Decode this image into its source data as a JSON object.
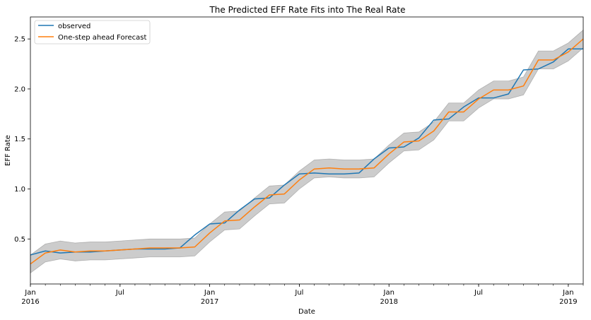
{
  "chart_data": {
    "type": "line",
    "title": "The Predicted EFF Rate Fits into The Real Rate",
    "xlabel": "Date",
    "ylabel": "EFF Rate",
    "xlim": [
      "2016-01",
      "2019-02"
    ],
    "ylim": [
      0.05,
      2.72
    ],
    "yticks": [
      0.5,
      1.0,
      1.5,
      2.0,
      2.5
    ],
    "ytick_labels": [
      "0.5",
      "1.0",
      "1.5",
      "2.0",
      "2.5"
    ],
    "xticks": [
      {
        "x": "2016-01",
        "label": "Jan",
        "sublabel": "2016"
      },
      {
        "x": "2016-07",
        "label": "Jul",
        "sublabel": ""
      },
      {
        "x": "2017-01",
        "label": "Jan",
        "sublabel": "2017"
      },
      {
        "x": "2017-07",
        "label": "Jul",
        "sublabel": ""
      },
      {
        "x": "2018-01",
        "label": "Jan",
        "sublabel": "2018"
      },
      {
        "x": "2018-07",
        "label": "Jul",
        "sublabel": ""
      },
      {
        "x": "2019-01",
        "label": "Jan",
        "sublabel": "2019"
      }
    ],
    "grid": false,
    "legend_position": "top-left",
    "x": [
      "2016-01",
      "2016-02",
      "2016-03",
      "2016-04",
      "2016-05",
      "2016-06",
      "2016-07",
      "2016-08",
      "2016-09",
      "2016-10",
      "2016-11",
      "2016-12",
      "2017-01",
      "2017-02",
      "2017-03",
      "2017-04",
      "2017-05",
      "2017-06",
      "2017-07",
      "2017-08",
      "2017-09",
      "2017-10",
      "2017-11",
      "2017-12",
      "2018-01",
      "2018-02",
      "2018-03",
      "2018-04",
      "2018-05",
      "2018-06",
      "2018-07",
      "2018-08",
      "2018-09",
      "2018-10",
      "2018-11",
      "2018-12",
      "2019-01",
      "2019-02"
    ],
    "series": [
      {
        "name": "observed",
        "color": "#1f77b4",
        "values": [
          0.34,
          0.38,
          0.36,
          0.37,
          0.37,
          0.38,
          0.39,
          0.4,
          0.4,
          0.4,
          0.41,
          0.54,
          0.65,
          0.66,
          0.79,
          0.9,
          0.91,
          1.04,
          1.15,
          1.16,
          1.15,
          1.15,
          1.16,
          1.3,
          1.41,
          1.42,
          1.51,
          1.69,
          1.7,
          1.82,
          1.91,
          1.91,
          1.95,
          2.19,
          2.2,
          2.27,
          2.4,
          2.4
        ]
      },
      {
        "name": "One-step ahead Forecast",
        "color": "#ff7f0e",
        "values": [
          0.25,
          0.36,
          0.39,
          0.37,
          0.38,
          0.38,
          0.39,
          0.4,
          0.41,
          0.41,
          0.41,
          0.42,
          0.56,
          0.68,
          0.69,
          0.82,
          0.94,
          0.95,
          1.09,
          1.2,
          1.21,
          1.2,
          1.2,
          1.21,
          1.35,
          1.47,
          1.48,
          1.58,
          1.77,
          1.77,
          1.9,
          1.99,
          1.99,
          2.03,
          2.29,
          2.29,
          2.37,
          2.5
        ]
      }
    ],
    "confidence_band": {
      "color": "#000000",
      "opacity": 0.2,
      "lower": [
        0.16,
        0.27,
        0.3,
        0.28,
        0.29,
        0.29,
        0.3,
        0.31,
        0.32,
        0.32,
        0.32,
        0.33,
        0.47,
        0.59,
        0.6,
        0.73,
        0.85,
        0.86,
        1.0,
        1.11,
        1.12,
        1.11,
        1.11,
        1.12,
        1.26,
        1.38,
        1.39,
        1.49,
        1.68,
        1.68,
        1.81,
        1.9,
        1.9,
        1.94,
        2.2,
        2.2,
        2.28,
        2.41
      ],
      "upper": [
        0.34,
        0.45,
        0.48,
        0.46,
        0.47,
        0.47,
        0.48,
        0.49,
        0.5,
        0.5,
        0.5,
        0.51,
        0.65,
        0.77,
        0.78,
        0.91,
        1.03,
        1.04,
        1.18,
        1.29,
        1.3,
        1.29,
        1.29,
        1.3,
        1.44,
        1.56,
        1.57,
        1.67,
        1.86,
        1.86,
        1.99,
        2.08,
        2.08,
        2.12,
        2.38,
        2.38,
        2.46,
        2.59
      ]
    }
  }
}
